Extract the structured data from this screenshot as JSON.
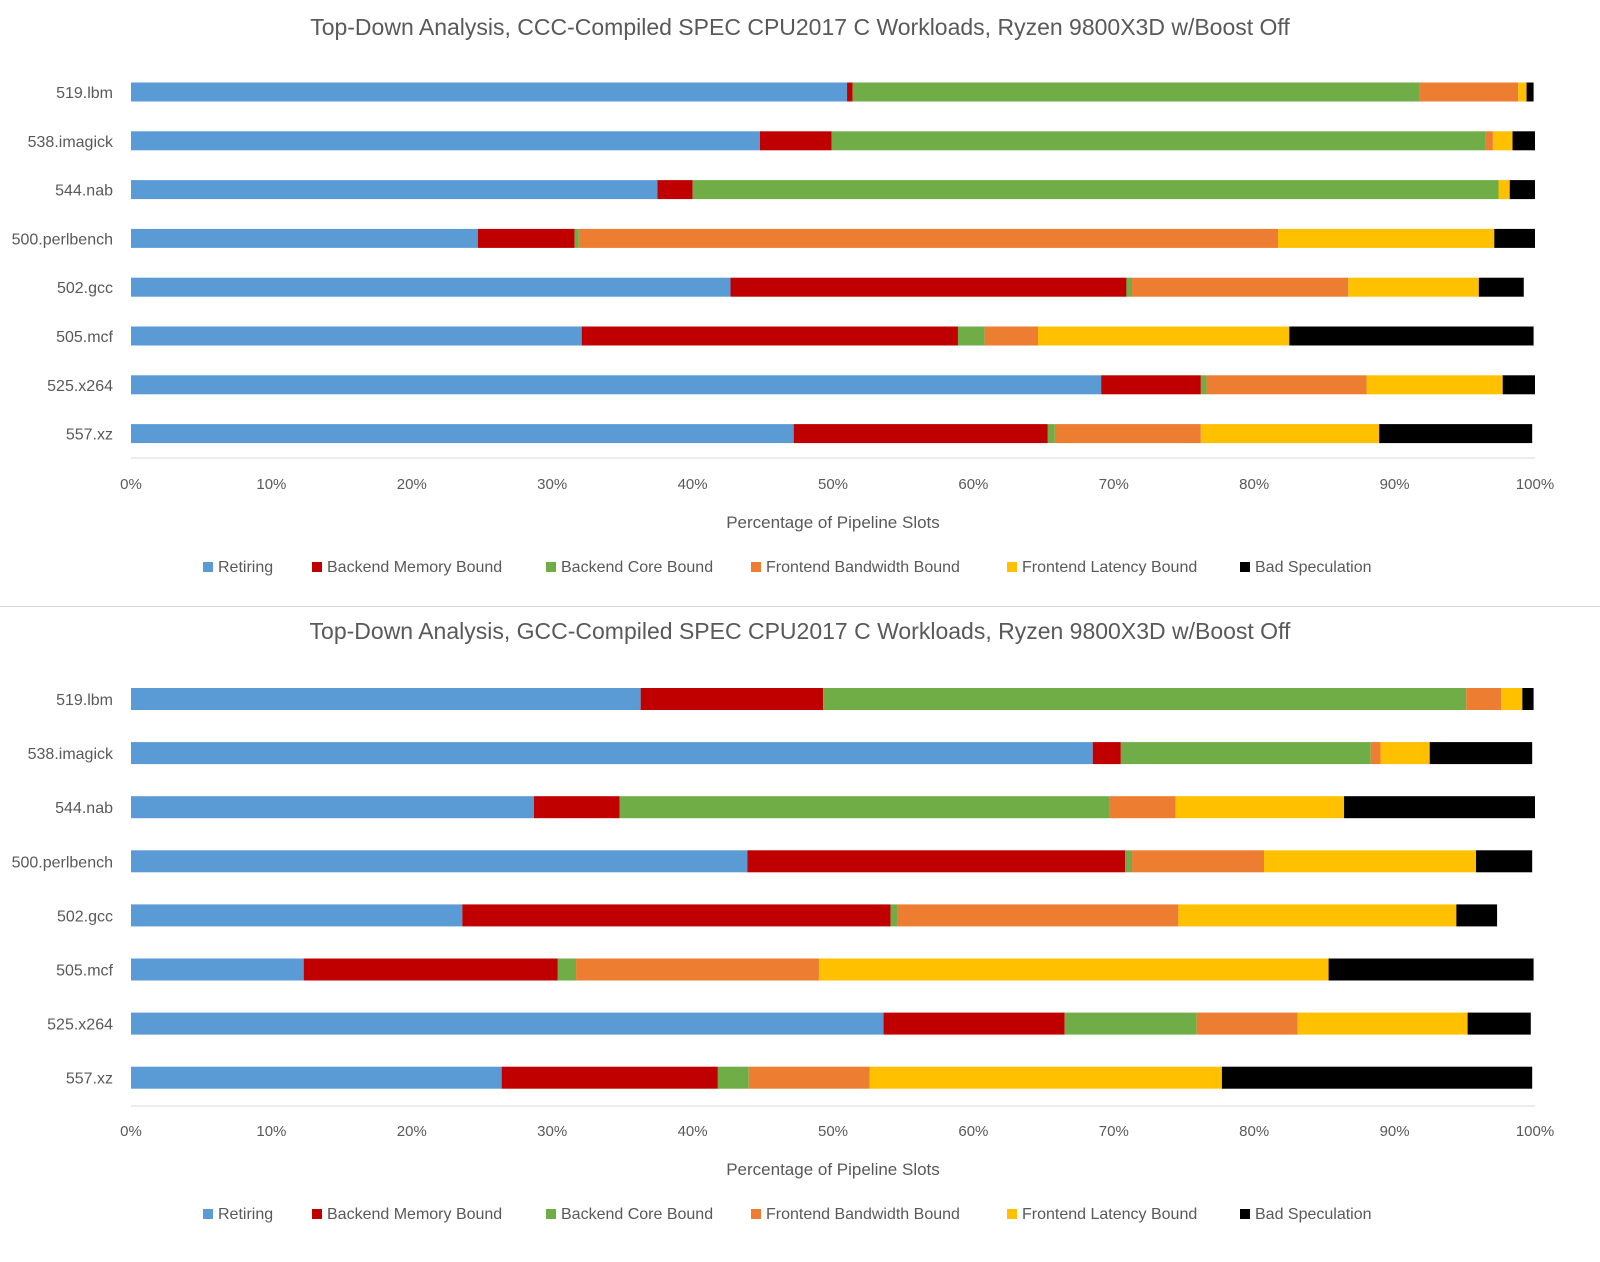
{
  "chart_data": [
    {
      "type": "bar",
      "orientation": "horizontal",
      "stacked": true,
      "title": "Top-Down Analysis, CCC-Compiled SPEC CPU2017 C Workloads, Ryzen 9800X3D w/Boost Off",
      "xlabel": "Percentage of Pipeline Slots",
      "ylabel": "",
      "xlim": [
        0,
        100
      ],
      "xticks": [
        "0%",
        "10%",
        "20%",
        "30%",
        "40%",
        "50%",
        "60%",
        "70%",
        "80%",
        "90%",
        "100%"
      ],
      "grid": false,
      "legend_position": "bottom",
      "categories": [
        "519.lbm",
        "538.imagick",
        "544.nab",
        "500.perlbench",
        "502.gcc",
        "505.mcf",
        "525.x264",
        "557.xz"
      ],
      "series": [
        {
          "name": "Retiring",
          "color": "#5b9bd5",
          "values": [
            51.0,
            44.8,
            37.5,
            24.7,
            42.7,
            32.1,
            69.1,
            47.2
          ]
        },
        {
          "name": "Backend Memory Bound",
          "color": "#c00000",
          "values": [
            0.4,
            5.1,
            2.5,
            6.9,
            28.2,
            26.8,
            7.1,
            18.1
          ]
        },
        {
          "name": "Backend Core Bound",
          "color": "#70ad47",
          "values": [
            40.4,
            46.6,
            57.4,
            0.3,
            0.4,
            1.9,
            0.4,
            0.5
          ]
        },
        {
          "name": "Frontend Bandwidth Bound",
          "color": "#ed7d31",
          "values": [
            7.0,
            0.5,
            0.0,
            49.8,
            15.4,
            3.8,
            11.4,
            10.4
          ]
        },
        {
          "name": "Frontend Latency Bound",
          "color": "#ffc000",
          "values": [
            0.6,
            1.4,
            0.8,
            15.4,
            9.3,
            17.9,
            9.7,
            12.7
          ]
        },
        {
          "name": "Bad Speculation",
          "color": "#000000",
          "values": [
            0.5,
            1.6,
            1.8,
            2.9,
            3.2,
            17.4,
            2.3,
            10.9
          ]
        }
      ]
    },
    {
      "type": "bar",
      "orientation": "horizontal",
      "stacked": true,
      "title": "Top-Down Analysis, GCC-Compiled SPEC CPU2017 C Workloads, Ryzen 9800X3D w/Boost Off",
      "xlabel": "Percentage of Pipeline Slots",
      "ylabel": "",
      "xlim": [
        0,
        100
      ],
      "xticks": [
        "0%",
        "10%",
        "20%",
        "30%",
        "40%",
        "50%",
        "60%",
        "70%",
        "80%",
        "90%",
        "100%"
      ],
      "grid": false,
      "legend_position": "bottom",
      "categories": [
        "519.lbm",
        "538.imagick",
        "544.nab",
        "500.perlbench",
        "502.gcc",
        "505.mcf",
        "525.x264",
        "557.xz"
      ],
      "series": [
        {
          "name": "Retiring",
          "color": "#5b9bd5",
          "values": [
            36.3,
            68.5,
            28.7,
            43.9,
            23.6,
            12.3,
            53.6,
            26.4
          ]
        },
        {
          "name": "Backend Memory Bound",
          "color": "#c00000",
          "values": [
            13.0,
            2.0,
            6.1,
            26.9,
            30.5,
            18.1,
            12.9,
            15.4
          ]
        },
        {
          "name": "Backend Core Bound",
          "color": "#70ad47",
          "values": [
            45.8,
            17.8,
            34.9,
            0.5,
            0.5,
            1.3,
            9.4,
            2.2
          ]
        },
        {
          "name": "Frontend Bandwidth Bound",
          "color": "#ed7d31",
          "values": [
            2.5,
            0.7,
            4.7,
            9.4,
            20.0,
            17.3,
            7.2,
            8.6
          ]
        },
        {
          "name": "Frontend Latency Bound",
          "color": "#ffc000",
          "values": [
            1.5,
            3.5,
            12.0,
            15.1,
            19.8,
            36.3,
            12.1,
            25.1
          ]
        },
        {
          "name": "Bad Speculation",
          "color": "#000000",
          "values": [
            0.8,
            7.3,
            13.6,
            4.0,
            2.9,
            14.6,
            4.5,
            22.1
          ]
        }
      ]
    }
  ]
}
